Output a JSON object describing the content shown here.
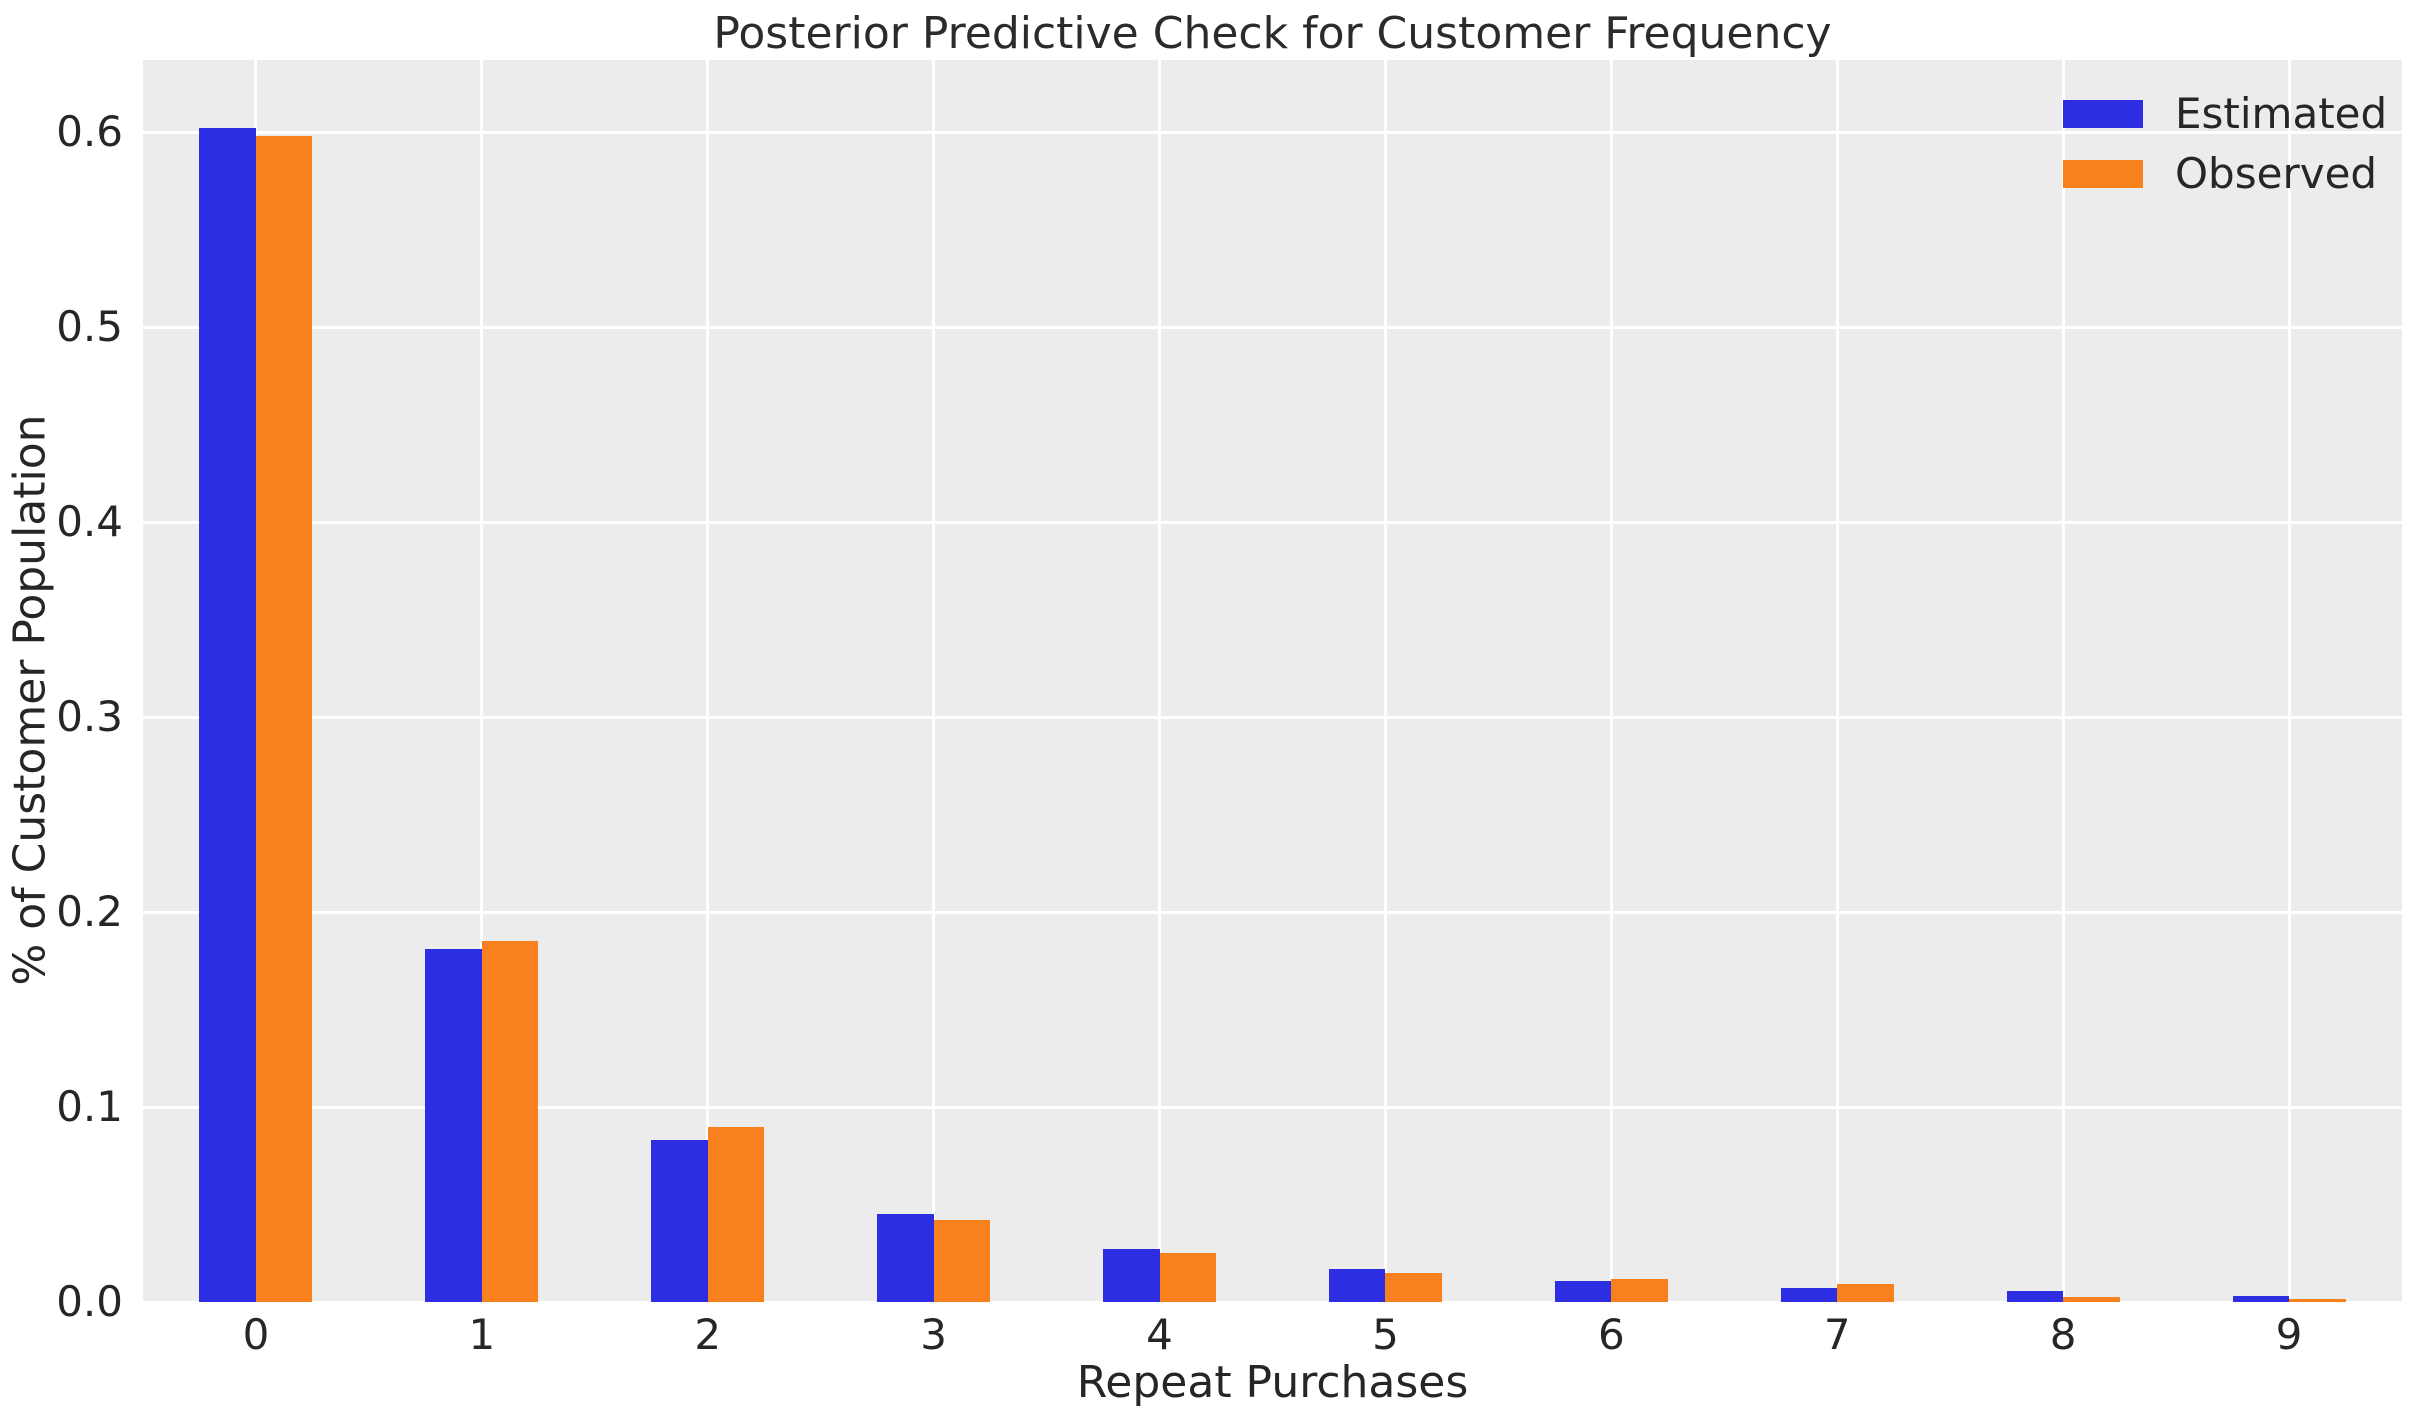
{
  "chart_data": {
    "type": "bar",
    "title": "Posterior Predictive Check for Customer Frequency",
    "xlabel": "Repeat Purchases",
    "ylabel": "% of Customer Population",
    "categories": [
      "0",
      "1",
      "2",
      "3",
      "4",
      "5",
      "6",
      "7",
      "8",
      "9"
    ],
    "series": [
      {
        "name": "Estimated",
        "color": "#2D2DE1",
        "values": [
          0.602,
          0.181,
          0.083,
          0.045,
          0.027,
          0.017,
          0.011,
          0.007,
          0.0055,
          0.003
        ]
      },
      {
        "name": "Observed",
        "color": "#F8811D",
        "values": [
          0.598,
          0.185,
          0.09,
          0.042,
          0.025,
          0.015,
          0.012,
          0.009,
          0.0025,
          0.0015
        ]
      }
    ],
    "ytick_labels": [
      "0.0",
      "0.1",
      "0.2",
      "0.3",
      "0.4",
      "0.5",
      "0.6"
    ],
    "yticks": [
      0.0,
      0.1,
      0.2,
      0.3,
      0.4,
      0.5,
      0.6
    ],
    "ylim": [
      0,
      0.637
    ],
    "xlim": [
      -0.5,
      9.5
    ],
    "bar_width_units": 0.25,
    "grid": "on",
    "legend_position": "upper right",
    "colors": {
      "plot_background": "#ECECEC",
      "grid": "#FFFFFF",
      "text": "#262626",
      "figure_background": "#FFFFFF"
    }
  }
}
